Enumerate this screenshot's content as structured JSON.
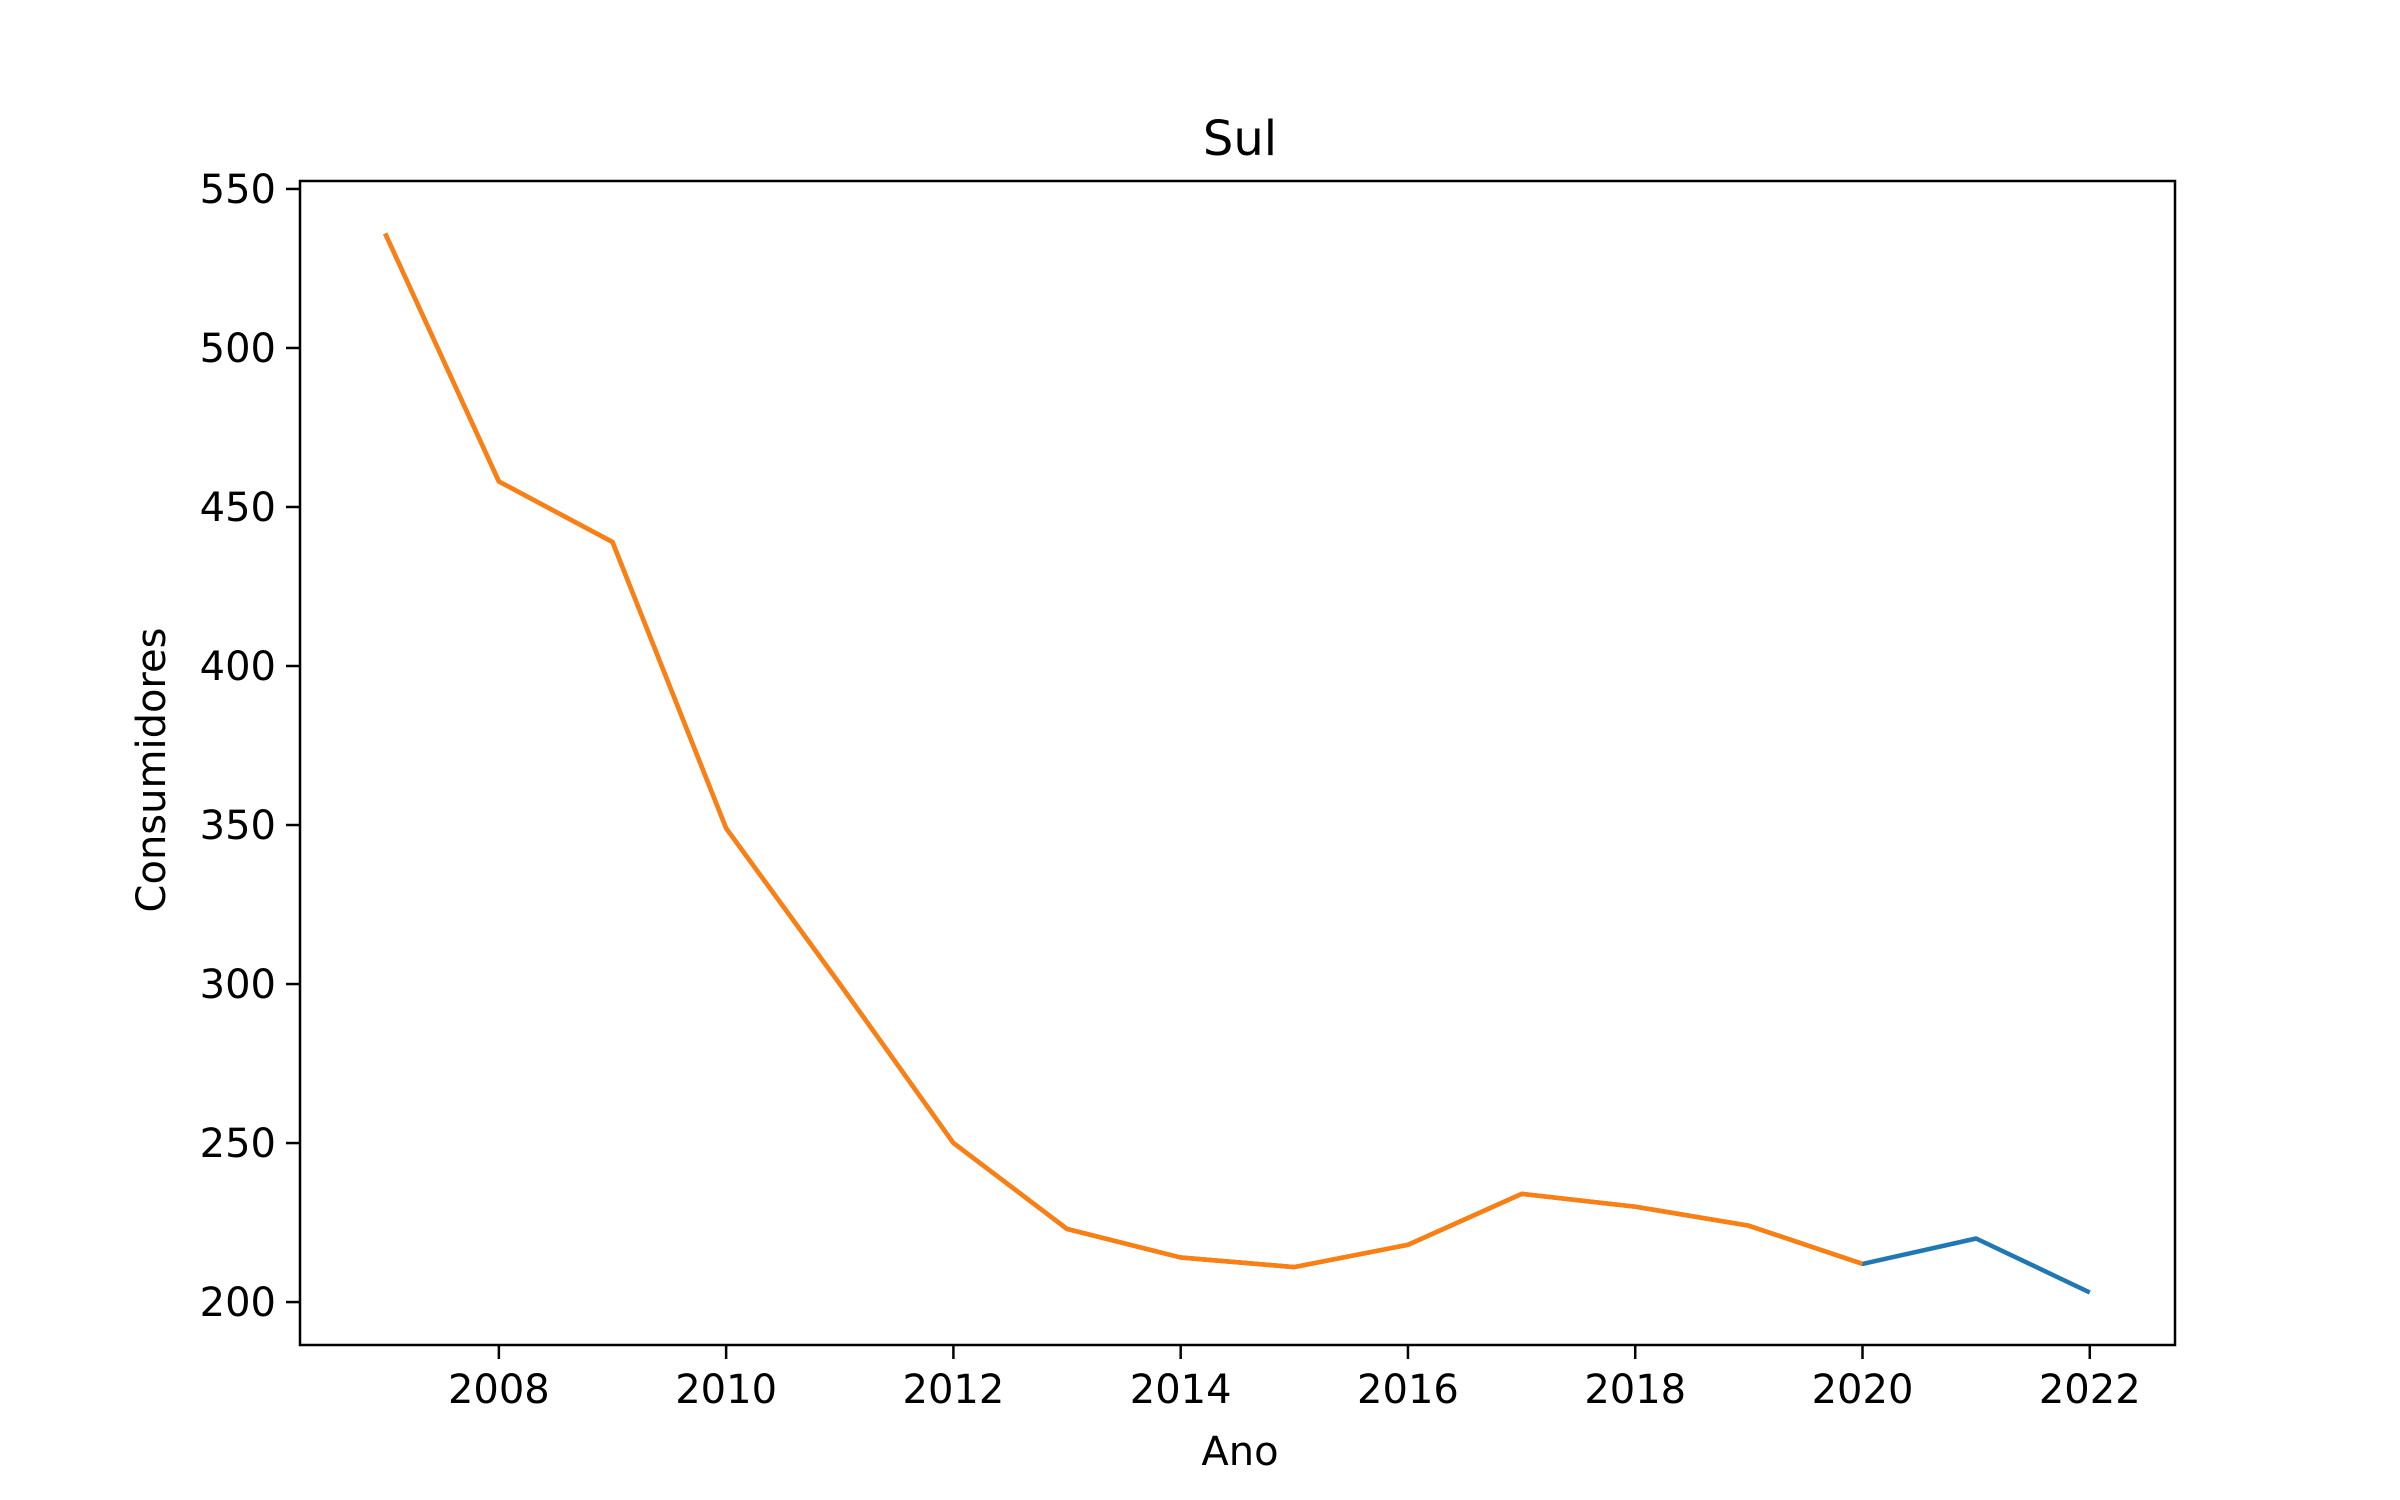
{
  "chart_data": {
    "type": "line",
    "title": "Sul",
    "xlabel": "Ano",
    "ylabel": "Consumidores",
    "xlim": [
      2006.25,
      2022.75
    ],
    "ylim": [
      186.5,
      552.5
    ],
    "xticks": [
      2008,
      2010,
      2012,
      2014,
      2016,
      2018,
      2020,
      2022
    ],
    "yticks": [
      200,
      250,
      300,
      350,
      400,
      450,
      500,
      550
    ],
    "grid": false,
    "legend": "none",
    "series": [
      {
        "color": "#1f77b4",
        "x": [
          2007,
          2008,
          2009,
          2010,
          2011,
          2012,
          2013,
          2014,
          2015,
          2016,
          2017,
          2018,
          2019,
          2020,
          2021,
          2022
        ],
        "y": [
          536,
          458,
          439,
          349,
          300,
          250,
          223,
          214,
          211,
          218,
          234,
          230,
          224,
          212,
          220,
          203
        ]
      },
      {
        "color": "#ff7f0e",
        "x": [
          2007,
          2008,
          2009,
          2010,
          2011,
          2012,
          2013,
          2014,
          2015,
          2016,
          2017,
          2018,
          2019,
          2020
        ],
        "y": [
          536,
          458,
          439,
          349,
          300,
          250,
          223,
          214,
          211,
          218,
          234,
          230,
          224,
          212
        ]
      }
    ]
  }
}
